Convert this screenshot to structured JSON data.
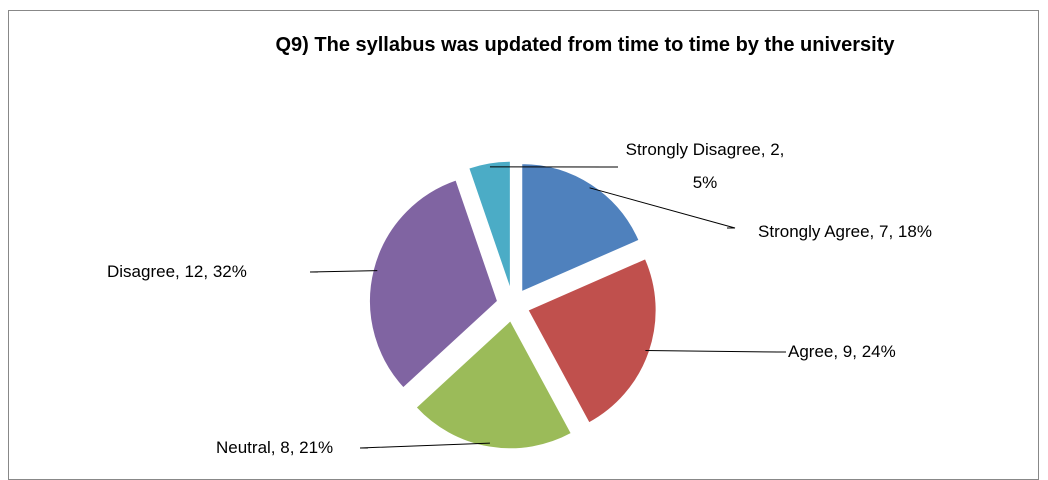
{
  "chart_data": {
    "type": "pie",
    "title": "Q9) The syllabus was updated from time to time by the university",
    "values": [
      7,
      9,
      8,
      12,
      2
    ],
    "value_labels": [
      "Strongly Agree, 7, 18%",
      "Agree, 9, 24%",
      "Neutral, 8, 21%",
      "Disagree, 12, 32%",
      "Strongly Disagree, 2, 5%"
    ],
    "colors": [
      "#4f81bd",
      "#c0504d",
      "#9bbb59",
      "#8064a2",
      "#4bacc6"
    ],
    "exploded": true
  }
}
